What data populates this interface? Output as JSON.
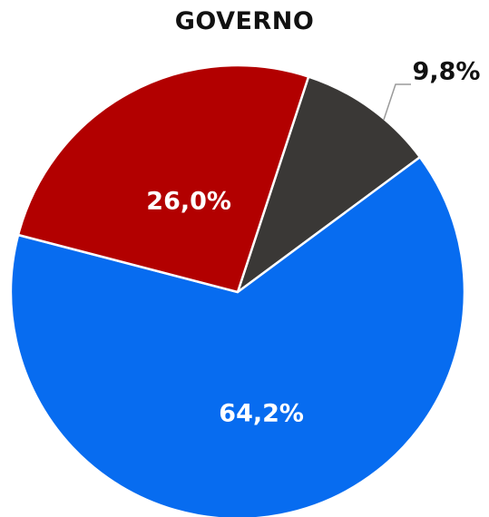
{
  "chart_data": {
    "type": "pie",
    "title": "GOVERNO",
    "slices": [
      {
        "label": "9,8%",
        "value": 9.8,
        "color": "#3a3836"
      },
      {
        "label": "64,2%",
        "value": 64.2,
        "color": "#076cf0"
      },
      {
        "label": "26,0%",
        "value": 26.0,
        "color": "#b20000"
      }
    ]
  },
  "colors": {
    "label_inside": "#ffffff",
    "label_outside": "#111111",
    "leader_line": "#9a9a9a",
    "slice_border": "#ffffff"
  }
}
